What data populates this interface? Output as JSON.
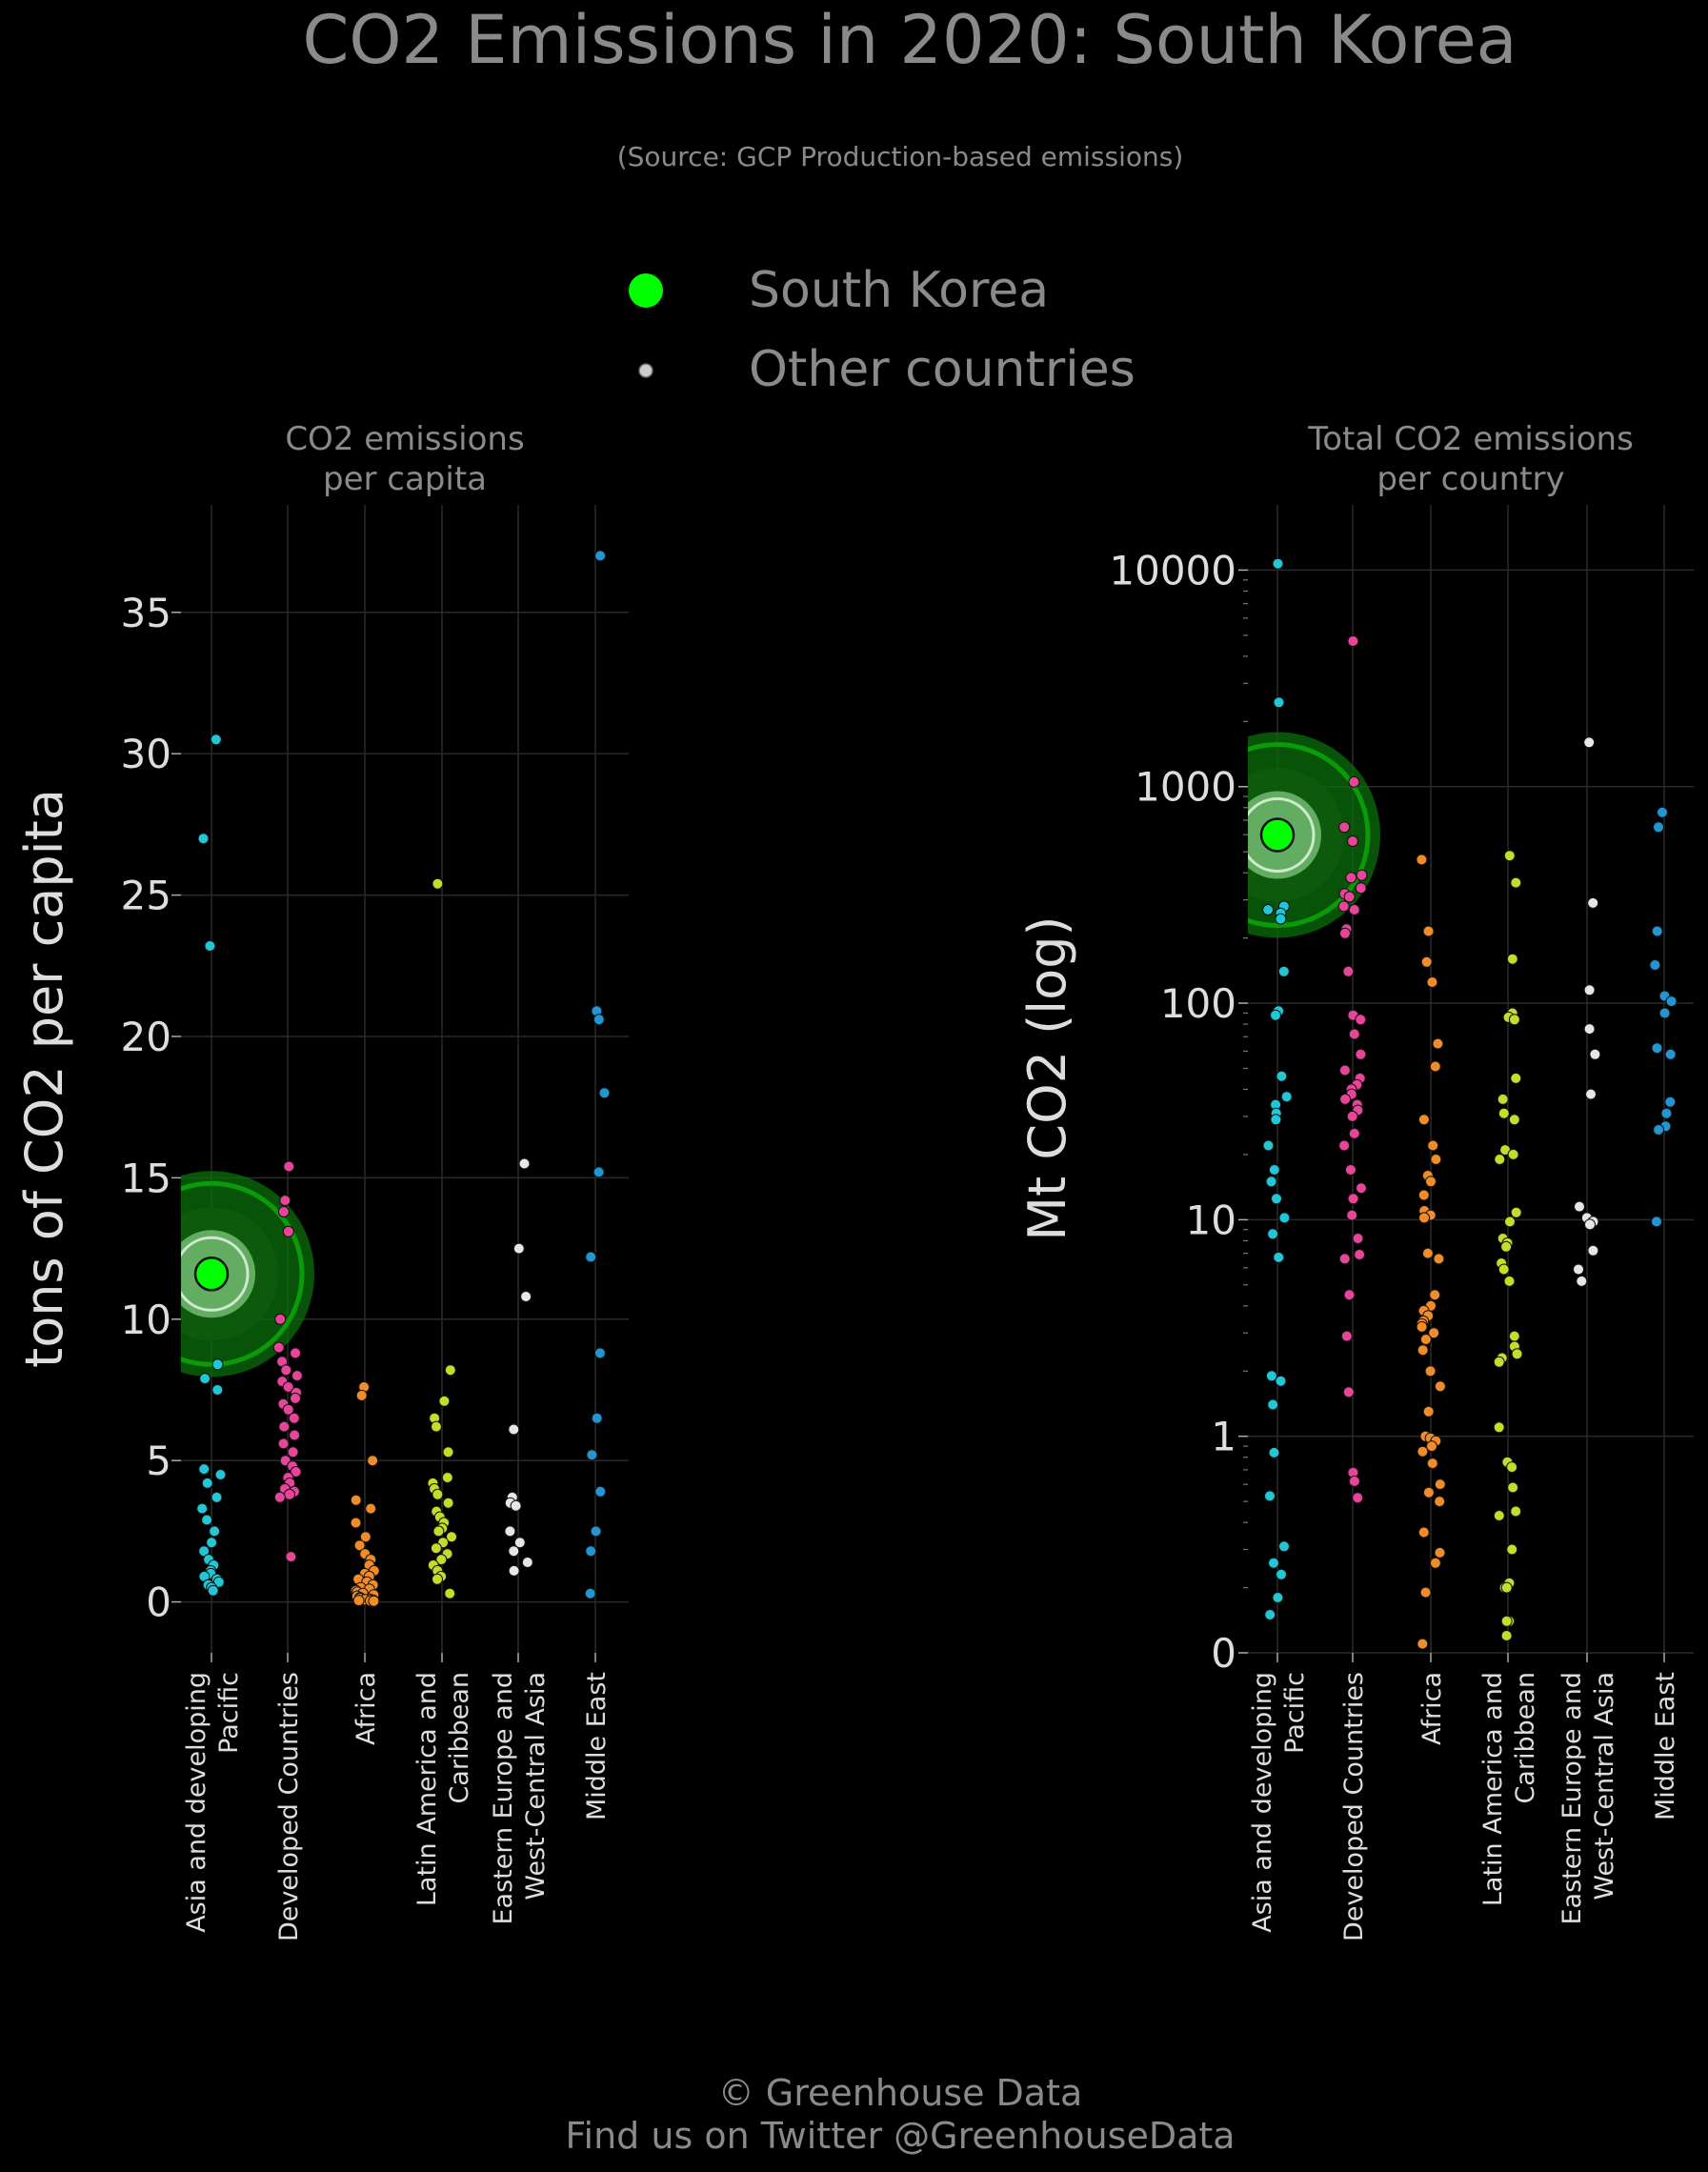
{
  "title": "CO2 Emissions in 2020: South Korea",
  "subtitle": "(Source: GCP Production-based emissions)",
  "legend": {
    "placement": "top-center",
    "items": [
      {
        "label": "South Korea",
        "color": "#00ff00"
      },
      {
        "label": "Other countries",
        "color": "#cccccc"
      }
    ]
  },
  "footer": {
    "line1": "© Greenhouse Data",
    "line2": "Find us on Twitter @GreenhouseData"
  },
  "colors": {
    "background": "#000000",
    "highlight": "#00ff00",
    "halo_dark": "#0a6f0a",
    "halo_light": "#7fc97f",
    "grid": "#2a2a2a",
    "text": "#8a8a8a",
    "tick_text": "#dddddd"
  },
  "chart_data": [
    {
      "id": "per-capita",
      "type": "scatter",
      "subtitle_lines": [
        "CO2 emissions",
        "per capita"
      ],
      "ylabel": "tons of CO2 per capita",
      "yscale": "linear",
      "ylim": [
        -1.8,
        38.8
      ],
      "yticks": [
        0,
        5,
        10,
        15,
        20,
        25,
        30,
        35
      ],
      "ytick_labels": [
        "0",
        "5",
        "10",
        "15",
        "20",
        "25",
        "30",
        "35"
      ],
      "grid": true,
      "categories": [
        {
          "lines": [
            "Asia and developing",
            "Pacific"
          ],
          "color": "#22c7d6"
        },
        {
          "lines": [
            "Developed Countries"
          ],
          "color": "#e8449a"
        },
        {
          "lines": [
            "Africa"
          ],
          "color": "#f28c28"
        },
        {
          "lines": [
            "Latin America and",
            "Caribbean"
          ],
          "color": "#c5dc2a"
        },
        {
          "lines": [
            "Eastern Europe and",
            "West-Central Asia"
          ],
          "color": "#e6e6e6"
        },
        {
          "lines": [
            "Middle East"
          ],
          "color": "#2196d3"
        }
      ],
      "highlight": {
        "name": "South Korea",
        "category": 0,
        "value": 11.6
      },
      "series": [
        {
          "category": 0,
          "values": [
            30.5,
            27.0,
            23.2,
            8.4,
            7.9,
            7.5,
            4.7,
            4.5,
            4.2,
            3.7,
            3.3,
            2.9,
            2.5,
            2.1,
            1.8,
            1.5,
            1.3,
            1.1,
            1.0,
            0.9,
            0.8,
            0.7,
            0.6,
            0.5,
            0.4
          ]
        },
        {
          "category": 1,
          "values": [
            15.4,
            14.2,
            13.8,
            13.1,
            10.0,
            9.0,
            8.8,
            8.5,
            8.2,
            8.0,
            7.8,
            7.6,
            7.4,
            7.2,
            7.0,
            6.8,
            6.5,
            6.2,
            5.9,
            5.6,
            5.3,
            5.0,
            4.8,
            4.6,
            4.4,
            4.2,
            4.0,
            3.9,
            3.8,
            3.7,
            1.6
          ]
        },
        {
          "category": 2,
          "values": [
            7.6,
            7.3,
            5.0,
            3.6,
            3.3,
            2.8,
            2.3,
            2.0,
            1.7,
            1.5,
            1.3,
            1.1,
            1.0,
            0.9,
            0.8,
            0.7,
            0.6,
            0.5,
            0.45,
            0.4,
            0.35,
            0.3,
            0.25,
            0.2,
            0.15,
            0.12,
            0.1,
            0.08,
            0.06,
            0.05,
            0.04,
            0.03
          ]
        },
        {
          "category": 3,
          "values": [
            25.4,
            8.2,
            7.1,
            6.5,
            6.2,
            5.3,
            4.4,
            4.2,
            4.0,
            3.8,
            3.5,
            3.2,
            3.0,
            2.8,
            2.6,
            2.5,
            2.3,
            2.1,
            1.9,
            1.7,
            1.5,
            1.3,
            1.1,
            0.9,
            0.8,
            0.3
          ]
        },
        {
          "category": 4,
          "values": [
            15.5,
            12.5,
            10.8,
            6.1,
            3.7,
            3.5,
            3.4,
            2.5,
            2.1,
            1.8,
            1.4,
            1.1
          ]
        },
        {
          "category": 5,
          "values": [
            37.0,
            20.9,
            20.6,
            18.0,
            15.2,
            12.2,
            8.8,
            6.5,
            5.2,
            3.9,
            2.5,
            1.8,
            0.3
          ]
        }
      ]
    },
    {
      "id": "total",
      "type": "scatter",
      "subtitle_lines": [
        "Total CO2 emissions",
        "per country"
      ],
      "ylabel": "Mt CO2 (log)",
      "yscale": "log",
      "ylim": [
        0.1,
        20000
      ],
      "yticks": [
        0.1,
        1,
        10,
        100,
        1000,
        10000
      ],
      "ytick_labels": [
        "0",
        "1",
        "10",
        "100",
        "1000",
        "10000"
      ],
      "grid": true,
      "categories": [
        {
          "lines": [
            "Asia and developing",
            "Pacific"
          ],
          "color": "#22c7d6"
        },
        {
          "lines": [
            "Developed Countries"
          ],
          "color": "#e8449a"
        },
        {
          "lines": [
            "Africa"
          ],
          "color": "#f28c28"
        },
        {
          "lines": [
            "Latin America and",
            "Caribbean"
          ],
          "color": "#c5dc2a"
        },
        {
          "lines": [
            "Eastern Europe and",
            "West-Central Asia"
          ],
          "color": "#e6e6e6"
        },
        {
          "lines": [
            "Middle East"
          ],
          "color": "#2196d3"
        }
      ],
      "highlight": {
        "name": "South Korea",
        "category": 0,
        "value": 598
      },
      "series": [
        {
          "category": 0,
          "values": [
            10700,
            2450,
            280,
            270,
            260,
            245,
            140,
            92,
            88,
            46,
            37,
            34,
            31,
            29,
            22,
            17,
            15,
            12.5,
            10.2,
            8.6,
            6.7,
            1.9,
            1.8,
            1.4,
            0.84,
            0.53,
            0.31,
            0.26,
            0.23,
            0.18,
            0.15
          ]
        },
        {
          "category": 1,
          "values": [
            4700,
            1050,
            650,
            560,
            390,
            380,
            340,
            320,
            310,
            280,
            270,
            220,
            210,
            140,
            88,
            84,
            72,
            58,
            49,
            45,
            42,
            40,
            38,
            36,
            34,
            32,
            30,
            25,
            22,
            17,
            14,
            12.5,
            10.5,
            8.2,
            6.9,
            6.6,
            4.5,
            2.9,
            1.6,
            0.68,
            0.62,
            0.52
          ]
        },
        {
          "category": 2,
          "values": [
            460,
            215,
            155,
            125,
            65,
            51,
            29,
            22,
            19,
            16,
            15,
            13,
            11,
            10.5,
            10.2,
            7.0,
            6.6,
            4.5,
            4.0,
            3.8,
            3.6,
            3.4,
            3.3,
            3.2,
            3.0,
            2.8,
            2.5,
            2.0,
            1.7,
            1.3,
            1.0,
            0.98,
            0.95,
            0.9,
            0.85,
            0.75,
            0.6,
            0.55,
            0.5,
            0.36,
            0.29,
            0.26,
            0.19,
            0.11
          ]
        },
        {
          "category": 3,
          "values": [
            480,
            360,
            160,
            90,
            86,
            84,
            45,
            36,
            31,
            29,
            21,
            20,
            19,
            10.8,
            9.8,
            8.2,
            7.8,
            7.5,
            6.3,
            5.9,
            5.2,
            2.9,
            2.6,
            2.4,
            2.3,
            2.2,
            1.1,
            0.76,
            0.72,
            0.58,
            0.45,
            0.43,
            0.3,
            0.21,
            0.2,
            0.2,
            0.14,
            0.14,
            0.12
          ]
        },
        {
          "category": 4,
          "values": [
            1600,
            290,
            115,
            76,
            58,
            38,
            11.5,
            10.2,
            9.8,
            9.5,
            7.2,
            5.9,
            5.2
          ]
        },
        {
          "category": 5,
          "values": [
            760,
            650,
            215,
            150,
            108,
            102,
            90,
            62,
            58,
            35,
            31,
            27,
            26,
            9.8
          ]
        }
      ]
    }
  ]
}
